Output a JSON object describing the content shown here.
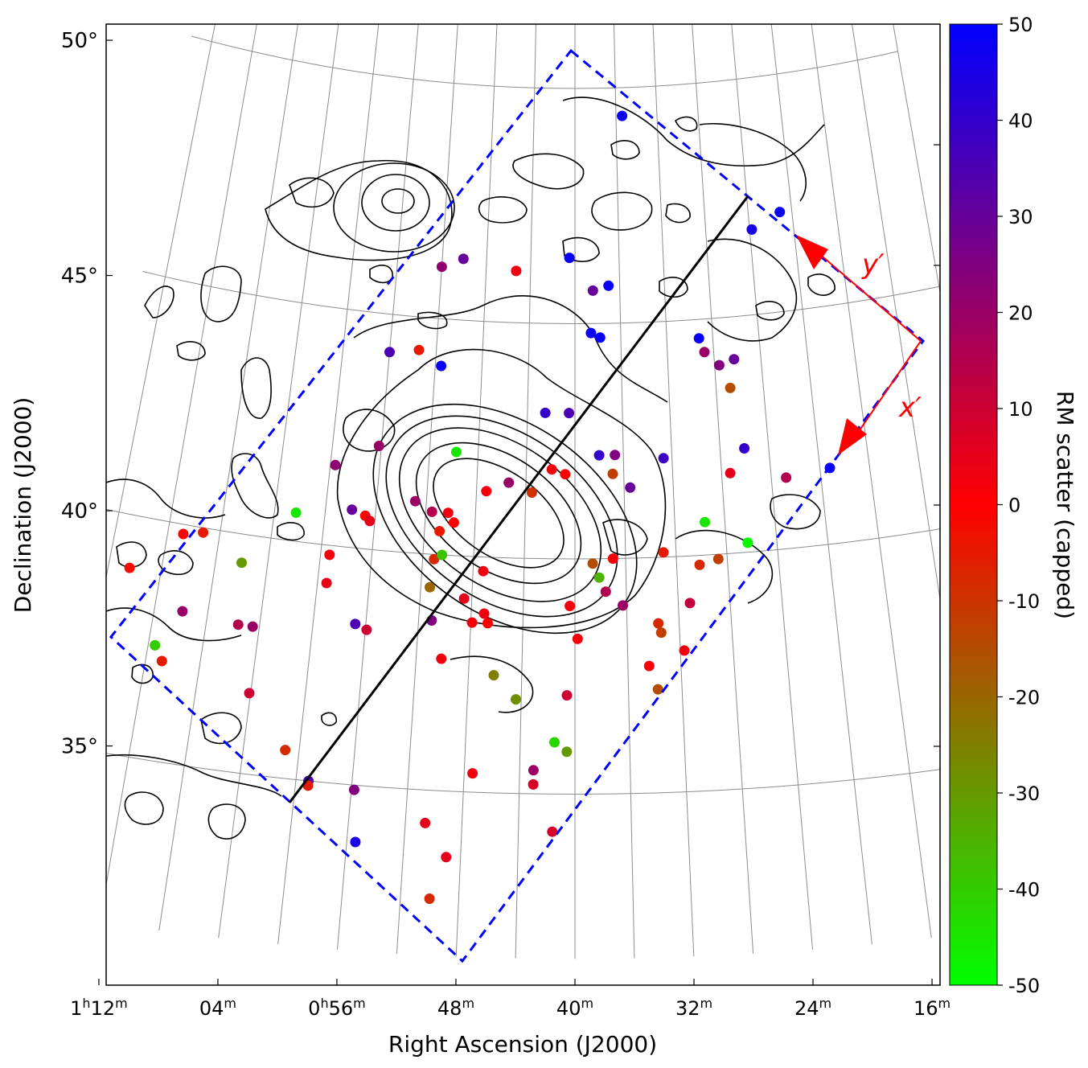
{
  "chart_data": {
    "type": "scatter",
    "xlabel": "Right Ascension (J2000)",
    "ylabel": "Declination (J2000)",
    "x_ticks": [
      {
        "value": 72,
        "h": "1",
        "m": "12"
      },
      {
        "value": 64,
        "h": "",
        "m": "04"
      },
      {
        "value": 56,
        "h": "0",
        "m": "56"
      },
      {
        "value": 48,
        "h": "",
        "m": "48"
      },
      {
        "value": 40,
        "h": "",
        "m": "40"
      },
      {
        "value": 32,
        "h": "",
        "m": "32"
      },
      {
        "value": 24,
        "h": "",
        "m": "24"
      },
      {
        "value": 16,
        "h": "",
        "m": "16"
      }
    ],
    "y_ticks": [
      {
        "value": 50,
        "label": "50°"
      },
      {
        "value": 45,
        "label": "45°"
      },
      {
        "value": 40,
        "label": "40°"
      },
      {
        "value": 35,
        "label": "35°"
      }
    ],
    "colorbar": {
      "label": "RM scatter (capped)",
      "range": [
        -50,
        50
      ],
      "ticks": [
        "50",
        "40",
        "30",
        "20",
        "10",
        "0",
        "-10",
        "-20",
        "-30",
        "-40",
        "-50"
      ],
      "colors": [
        "#0000ff",
        "#ff0000",
        "#00ff00"
      ]
    },
    "annotations": {
      "x_axis": "x′",
      "y_axis": "y′"
    },
    "grid": true,
    "series": [
      {
        "points": [
          {
            "ra": 35.4,
            "dec": 49.4,
            "v": 48
          },
          {
            "ra": 21.1,
            "dec": 47.1,
            "v": 48
          },
          {
            "ra": 23.8,
            "dec": 46.8,
            "v": 45
          },
          {
            "ra": 40.5,
            "dec": 46.4,
            "v": 48
          },
          {
            "ra": 50.1,
            "dec": 46.3,
            "v": 30
          },
          {
            "ra": 52.0,
            "dec": 46.1,
            "v": 22
          },
          {
            "ra": 45.3,
            "dec": 46.1,
            "v": 3
          },
          {
            "ra": 37.0,
            "dec": 45.8,
            "v": 48
          },
          {
            "ra": 38.4,
            "dec": 45.7,
            "v": 30
          },
          {
            "ra": 38.6,
            "dec": 44.8,
            "v": 48
          },
          {
            "ra": 37.8,
            "dec": 44.7,
            "v": 48
          },
          {
            "ra": 29.2,
            "dec": 44.6,
            "v": 48
          },
          {
            "ra": 28.8,
            "dec": 44.3,
            "v": 20
          },
          {
            "ra": 26.3,
            "dec": 44.1,
            "v": 30
          },
          {
            "ra": 27.6,
            "dec": 44.0,
            "v": 25
          },
          {
            "ra": 56.0,
            "dec": 44.2,
            "v": 35
          },
          {
            "ra": 53.5,
            "dec": 44.3,
            "v": -5
          },
          {
            "ra": 51.5,
            "dec": 44.0,
            "v": 48
          },
          {
            "ra": 26.8,
            "dec": 43.5,
            "v": -15
          },
          {
            "ra": 42.5,
            "dec": 43.1,
            "v": 40
          },
          {
            "ra": 40.5,
            "dec": 43.1,
            "v": 35
          },
          {
            "ra": 38.0,
            "dec": 42.2,
            "v": 40
          },
          {
            "ra": 36.7,
            "dec": 42.2,
            "v": 25
          },
          {
            "ra": 32.7,
            "dec": 42.1,
            "v": 38
          },
          {
            "ra": 26.0,
            "dec": 42.2,
            "v": 40
          },
          {
            "ra": 19.2,
            "dec": 41.6,
            "v": 48
          },
          {
            "ra": 22.8,
            "dec": 41.5,
            "v": 15
          },
          {
            "ra": 27.3,
            "dec": 41.7,
            "v": 5
          },
          {
            "ra": 35.5,
            "dec": 41.5,
            "v": 30
          },
          {
            "ra": 36.9,
            "dec": 41.8,
            "v": -12
          },
          {
            "ra": 41.9,
            "dec": 41.9,
            "v": 2
          },
          {
            "ra": 40.8,
            "dec": 41.8,
            "v": 0
          },
          {
            "ra": 45.4,
            "dec": 41.6,
            "v": 20
          },
          {
            "ra": 43.5,
            "dec": 41.4,
            "v": -10
          },
          {
            "ra": 49.8,
            "dec": 42.2,
            "v": -45
          },
          {
            "ra": 56.2,
            "dec": 42.2,
            "v": 20
          },
          {
            "ra": 47.2,
            "dec": 41.4,
            "v": 2
          },
          {
            "ra": 52.9,
            "dec": 41.1,
            "v": 20
          },
          {
            "ra": 51.5,
            "dec": 40.9,
            "v": 15
          },
          {
            "ra": 50.2,
            "dec": 40.9,
            "v": 3
          },
          {
            "ra": 49.7,
            "dec": 40.7,
            "v": 0
          },
          {
            "ra": 50.8,
            "dec": 40.5,
            "v": -5
          },
          {
            "ra": 59.6,
            "dec": 41.7,
            "v": 22
          },
          {
            "ra": 57.9,
            "dec": 40.8,
            "v": 30
          },
          {
            "ra": 56.8,
            "dec": 40.7,
            "v": -2
          },
          {
            "ra": 56.4,
            "dec": 40.6,
            "v": 5
          },
          {
            "ra": 62.3,
            "dec": 40.6,
            "v": -45
          },
          {
            "ra": 29.6,
            "dec": 40.7,
            "v": -45
          },
          {
            "ra": 26.3,
            "dec": 40.2,
            "v": -48
          },
          {
            "ra": 28.7,
            "dec": 39.9,
            "v": -12
          },
          {
            "ra": 30.2,
            "dec": 39.8,
            "v": -8
          },
          {
            "ra": 33.0,
            "dec": 40.1,
            "v": -5
          },
          {
            "ra": 37.0,
            "dec": 40.0,
            "v": 2
          },
          {
            "ra": 38.6,
            "dec": 39.9,
            "v": -15
          },
          {
            "ra": 38.1,
            "dec": 39.6,
            "v": -35
          },
          {
            "ra": 37.6,
            "dec": 39.3,
            "v": 15
          },
          {
            "ra": 36.3,
            "dec": 39.0,
            "v": 20
          },
          {
            "ra": 31.1,
            "dec": 39.0,
            "v": 12
          },
          {
            "ra": 40.4,
            "dec": 39.0,
            "v": 2
          },
          {
            "ra": 47.2,
            "dec": 39.7,
            "v": 3
          },
          {
            "ra": 51.1,
            "dec": 39.9,
            "v": -8
          },
          {
            "ra": 50.5,
            "dec": 40.0,
            "v": -38
          },
          {
            "ra": 51.3,
            "dec": 39.3,
            "v": -20
          },
          {
            "ra": 48.6,
            "dec": 39.1,
            "v": 5
          },
          {
            "ra": 59.3,
            "dec": 39.8,
            "v": 2
          },
          {
            "ra": 59.3,
            "dec": 39.2,
            "v": 5
          },
          {
            "ra": 70.8,
            "dec": 39.8,
            "v": 0
          },
          {
            "ra": 69.3,
            "dec": 39.9,
            "v": -5
          },
          {
            "ra": 66.0,
            "dec": 39.4,
            "v": -30
          },
          {
            "ra": 74.4,
            "dec": 38.9,
            "v": -2
          },
          {
            "ra": 51.0,
            "dec": 38.6,
            "v": 25
          },
          {
            "ra": 47.9,
            "dec": 38.6,
            "v": 2
          },
          {
            "ra": 47.0,
            "dec": 38.8,
            "v": 3
          },
          {
            "ra": 46.7,
            "dec": 38.6,
            "v": 0
          },
          {
            "ra": 56.8,
            "dec": 38.4,
            "v": 35
          },
          {
            "ra": 55.9,
            "dec": 38.3,
            "v": 10
          },
          {
            "ra": 39.8,
            "dec": 38.3,
            "v": 2
          },
          {
            "ra": 33.6,
            "dec": 38.6,
            "v": -8
          },
          {
            "ra": 33.4,
            "dec": 38.4,
            "v": -12
          },
          {
            "ra": 31.7,
            "dec": 38.0,
            "v": 2
          },
          {
            "ra": 34.4,
            "dec": 37.7,
            "v": 2
          },
          {
            "ra": 33.8,
            "dec": 37.2,
            "v": -15
          },
          {
            "ra": 69.9,
            "dec": 38.2,
            "v": 20
          },
          {
            "ra": 65.6,
            "dec": 38.1,
            "v": 15
          },
          {
            "ra": 64.5,
            "dec": 38.1,
            "v": 20
          },
          {
            "ra": 71.5,
            "dec": 37.4,
            "v": -40
          },
          {
            "ra": 70.8,
            "dec": 37.1,
            "v": -5
          },
          {
            "ra": 50.1,
            "dec": 37.8,
            "v": 3
          },
          {
            "ra": 46.1,
            "dec": 37.5,
            "v": -25
          },
          {
            "ra": 44.4,
            "dec": 37.0,
            "v": -28
          },
          {
            "ra": 40.6,
            "dec": 37.1,
            "v": 10
          },
          {
            "ra": 64.1,
            "dec": 36.7,
            "v": 10
          },
          {
            "ra": 41.5,
            "dec": 36.1,
            "v": -42
          },
          {
            "ra": 40.6,
            "dec": 35.9,
            "v": -30
          },
          {
            "ra": 61.0,
            "dec": 35.6,
            "v": -8
          },
          {
            "ra": 47.4,
            "dec": 35.4,
            "v": 3
          },
          {
            "ra": 43.0,
            "dec": 35.5,
            "v": 20
          },
          {
            "ra": 43.0,
            "dec": 35.2,
            "v": 8
          },
          {
            "ra": 59.1,
            "dec": 35.0,
            "v": 35
          },
          {
            "ra": 59.1,
            "dec": 34.9,
            "v": -5
          },
          {
            "ra": 55.8,
            "dec": 34.9,
            "v": 25
          },
          {
            "ra": 50.6,
            "dec": 34.3,
            "v": 5
          },
          {
            "ra": 41.6,
            "dec": 34.2,
            "v": 8
          },
          {
            "ra": 55.4,
            "dec": 33.8,
            "v": 45
          },
          {
            "ra": 49.0,
            "dec": 33.6,
            "v": 5
          },
          {
            "ra": 50.0,
            "dec": 32.7,
            "v": -8
          }
        ]
      }
    ]
  }
}
